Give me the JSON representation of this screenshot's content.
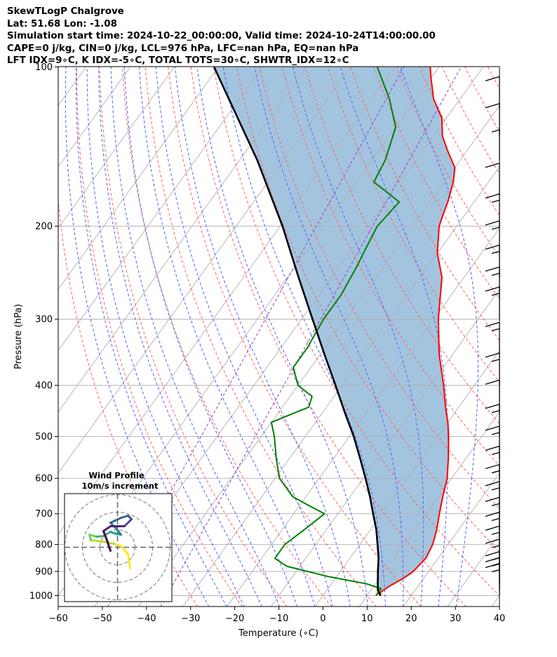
{
  "header": {
    "line1": "SkewTLogP Chalgrove",
    "line2": "Lat: 51.68   Lon: -1.08",
    "line3": "Simulation start time: 2024-10-22_00:00:00, Valid time: 2024-10-24T14:00:00.00",
    "line4": "CAPE=0 j/kg, CIN=0 j/kg, LCL=976 hPa, LFC=nan hPa, EQ=nan hPa",
    "line5": "LFT IDX=9∘C, K IDX=-5∘C, TOTAL TOTS=30∘C, SHWTR_IDX=12∘C"
  },
  "chart_data": {
    "type": "line",
    "subtype": "skew-t log-p",
    "xlabel": "Temperature (∘C)",
    "ylabel": "Pressure (hPa)",
    "xlim": [
      -60,
      40
    ],
    "ylim": [
      1050,
      100
    ],
    "yscale": "log",
    "grid": true,
    "x_ticks": [
      "−60",
      "−50",
      "−40",
      "−30",
      "−20",
      "−10",
      "0",
      "10",
      "20",
      "30",
      "40"
    ],
    "x_tick_values": [
      -60,
      -50,
      -40,
      -30,
      -20,
      -10,
      0,
      10,
      20,
      30,
      40
    ],
    "y_ticks": [
      "1000",
      "900",
      "800",
      "700",
      "600",
      "500",
      "400",
      "300",
      "200",
      "100"
    ],
    "y_tick_values": [
      1000,
      900,
      800,
      700,
      600,
      500,
      400,
      300,
      200,
      100
    ],
    "series": [
      {
        "role": "temperature",
        "color": "#ff0000",
        "points": [
          [
            1000,
            13
          ],
          [
            985,
            12.5
          ],
          [
            960,
            13.5
          ],
          [
            925,
            15.5
          ],
          [
            900,
            16.5
          ],
          [
            850,
            17.2
          ],
          [
            800,
            16.5
          ],
          [
            750,
            15
          ],
          [
            700,
            13
          ],
          [
            650,
            11
          ],
          [
            600,
            9
          ],
          [
            550,
            6
          ],
          [
            500,
            2.5
          ],
          [
            470,
            0
          ],
          [
            440,
            -3
          ],
          [
            400,
            -7
          ],
          [
            350,
            -13
          ],
          [
            300,
            -19
          ],
          [
            250,
            -25
          ],
          [
            225,
            -30
          ],
          [
            200,
            -34
          ],
          [
            190,
            -35
          ],
          [
            180,
            -36
          ],
          [
            165,
            -38
          ],
          [
            155,
            -40
          ],
          [
            145,
            -44
          ],
          [
            135,
            -48
          ],
          [
            125,
            -51
          ],
          [
            115,
            -56
          ],
          [
            105,
            -60
          ],
          [
            100,
            -62
          ]
        ]
      },
      {
        "role": "dewpoint",
        "color": "#008000",
        "points": [
          [
            1000,
            12
          ],
          [
            970,
            12
          ],
          [
            950,
            8
          ],
          [
            920,
            -2
          ],
          [
            880,
            -13
          ],
          [
            850,
            -17
          ],
          [
            800,
            -17
          ],
          [
            750,
            -15
          ],
          [
            700,
            -13
          ],
          [
            675,
            -18
          ],
          [
            650,
            -23
          ],
          [
            600,
            -29
          ],
          [
            550,
            -33
          ],
          [
            500,
            -37
          ],
          [
            470,
            -40
          ],
          [
            440,
            -34
          ],
          [
            420,
            -35
          ],
          [
            400,
            -40
          ],
          [
            370,
            -44
          ],
          [
            340,
            -44
          ],
          [
            300,
            -45
          ],
          [
            270,
            -45
          ],
          [
            240,
            -46
          ],
          [
            220,
            -47
          ],
          [
            200,
            -48
          ],
          [
            180,
            -47
          ],
          [
            165,
            -56
          ],
          [
            150,
            -57
          ],
          [
            130,
            -60
          ],
          [
            115,
            -66
          ],
          [
            100,
            -74
          ]
        ]
      },
      {
        "role": "parcel",
        "color": "#000000",
        "points": [
          [
            1000,
            13
          ],
          [
            976,
            11.5
          ],
          [
            900,
            8.5
          ],
          [
            850,
            6.5
          ],
          [
            800,
            4
          ],
          [
            750,
            1.3
          ],
          [
            700,
            -2
          ],
          [
            650,
            -5.5
          ],
          [
            600,
            -9.5
          ],
          [
            550,
            -14
          ],
          [
            500,
            -19
          ],
          [
            450,
            -25
          ],
          [
            400,
            -31.5
          ],
          [
            350,
            -39
          ],
          [
            300,
            -47.5
          ],
          [
            250,
            -57.5
          ],
          [
            200,
            -69.5
          ],
          [
            150,
            -86
          ],
          [
            100,
            -111
          ]
        ]
      }
    ],
    "wind_barbs": [
      {
        "p": 1000,
        "speed_kt": 15
      },
      {
        "p": 975,
        "speed_kt": 15
      },
      {
        "p": 950,
        "speed_kt": 15
      },
      {
        "p": 900,
        "speed_kt": 15
      },
      {
        "p": 850,
        "speed_kt": 15
      },
      {
        "p": 800,
        "speed_kt": 15
      },
      {
        "p": 750,
        "speed_kt": 15
      },
      {
        "p": 700,
        "speed_kt": 15
      },
      {
        "p": 650,
        "speed_kt": 15
      },
      {
        "p": 600,
        "speed_kt": 15
      },
      {
        "p": 550,
        "speed_kt": 15
      },
      {
        "p": 500,
        "speed_kt": 15
      },
      {
        "p": 450,
        "speed_kt": 10
      },
      {
        "p": 400,
        "speed_kt": 15
      },
      {
        "p": 350,
        "speed_kt": 15
      },
      {
        "p": 300,
        "speed_kt": 15
      },
      {
        "p": 275,
        "speed_kt": 15
      },
      {
        "p": 250,
        "speed_kt": 15
      },
      {
        "p": 225,
        "speed_kt": 15
      },
      {
        "p": 200,
        "speed_kt": 15
      },
      {
        "p": 175,
        "speed_kt": 10
      },
      {
        "p": 150,
        "speed_kt": 5
      },
      {
        "p": 135,
        "speed_kt": 10
      },
      {
        "p": 120,
        "speed_kt": 10
      }
    ],
    "inset": {
      "title_line1": "Wind Profile",
      "title_line2": "10m/s increment",
      "hodograph_ms": [
        [
          1.8,
          -3.0
        ],
        [
          1.5,
          -1.0
        ],
        [
          0.5,
          0.2
        ],
        [
          -0.5,
          0.5
        ],
        [
          -2.0,
          0.8
        ],
        [
          -3.8,
          1.0
        ],
        [
          -4.0,
          1.8
        ],
        [
          -3.0,
          1.5
        ],
        [
          -2.0,
          1.6
        ],
        [
          -1.0,
          2.2
        ],
        [
          -0.5,
          2.0
        ],
        [
          0.5,
          1.8
        ],
        [
          -0.3,
          2.8
        ],
        [
          -1.0,
          3.5
        ],
        [
          0.5,
          4.2
        ],
        [
          1.5,
          4.5
        ],
        [
          2.0,
          4.0
        ],
        [
          1.0,
          3.0
        ],
        [
          -1.0,
          3.0
        ],
        [
          -2.0,
          2.3
        ],
        [
          -1.5,
          1.0
        ],
        [
          -1.0,
          -0.5
        ]
      ]
    }
  }
}
